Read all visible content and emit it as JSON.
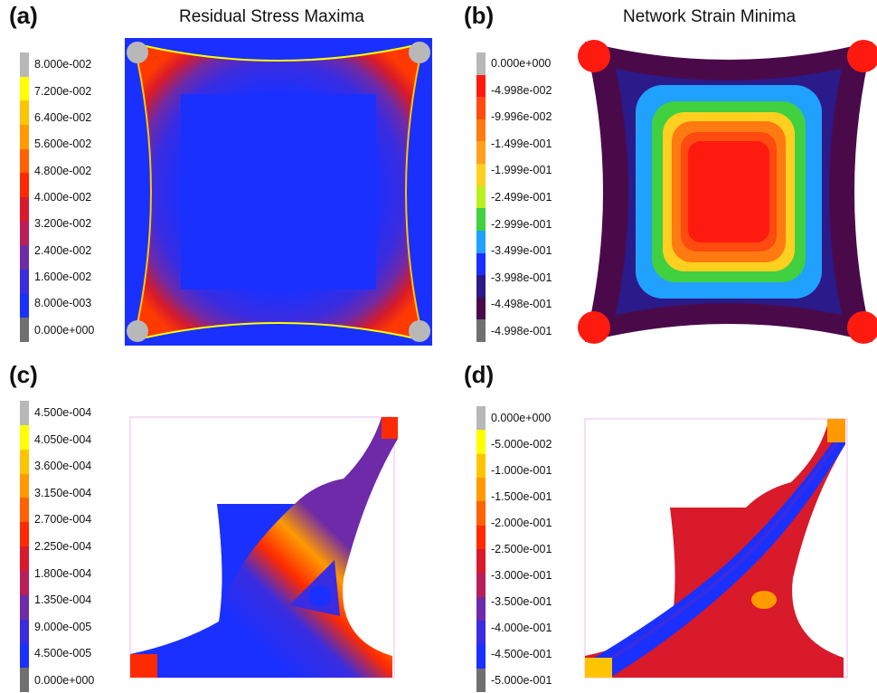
{
  "panels": [
    {
      "label": "(a)",
      "title": "Residual Stress Maxima",
      "legend_ticks": [
        "8.000e-002",
        "7.200e-002",
        "6.400e-002",
        "5.600e-002",
        "4.800e-002",
        "4.000e-002",
        "3.200e-002",
        "2.400e-002",
        "1.600e-002",
        "8.000e-003",
        "0.000e+000"
      ],
      "legend_colors": [
        "#b8b8b8",
        "#ffff00",
        "#ffc400",
        "#ff9a00",
        "#ff6200",
        "#ff2a00",
        "#d81a2a",
        "#b81e5a",
        "#6e2aa8",
        "#3a2ce0",
        "#1a30ff",
        "#707070"
      ]
    },
    {
      "label": "(b)",
      "title": "Network Strain Minima",
      "legend_ticks": [
        "0.000e+000",
        "-4.998e-002",
        "-9.996e-002",
        "-1.499e-001",
        "-1.999e-001",
        "-2.499e-001",
        "-2.999e-001",
        "-3.499e-001",
        "-3.998e-001",
        "-4.498e-001",
        "-4.998e-001"
      ],
      "legend_colors": [
        "#b8b8b8",
        "#ff1a10",
        "#ff4a10",
        "#ff7a10",
        "#ffa020",
        "#ffd020",
        "#b8f020",
        "#40d040",
        "#20a0ff",
        "#1a30ff",
        "#2a1a8a",
        "#4a0a4a",
        "#707070"
      ]
    },
    {
      "label": "(c)",
      "title": "",
      "legend_ticks": [
        "4.500e-004",
        "4.050e-004",
        "3.600e-004",
        "3.150e-004",
        "2.700e-004",
        "2.250e-004",
        "1.800e-004",
        "1.350e-004",
        "9.000e-005",
        "4.500e-005",
        "0.000e+000"
      ],
      "legend_colors": [
        "#b8b8b8",
        "#ffff00",
        "#ffc400",
        "#ff9a00",
        "#ff6200",
        "#ff2a00",
        "#d81a2a",
        "#b81e5a",
        "#6e2aa8",
        "#3a2ce0",
        "#1a30ff",
        "#707070"
      ]
    },
    {
      "label": "(d)",
      "title": "",
      "legend_ticks": [
        "0.000e+000",
        "-5.000e-002",
        "-1.000e-001",
        "-1.500e-001",
        "-2.000e-001",
        "-2.500e-001",
        "-3.000e-001",
        "-3.500e-001",
        "-4.000e-001",
        "-4.500e-001",
        "-5.000e-001"
      ],
      "legend_colors": [
        "#b8b8b8",
        "#ffff00",
        "#ffc400",
        "#ff9a00",
        "#ff6200",
        "#ff2a00",
        "#d81a2a",
        "#b81e5a",
        "#6e2aa8",
        "#3a2ce0",
        "#1a30ff",
        "#707070"
      ]
    }
  ]
}
